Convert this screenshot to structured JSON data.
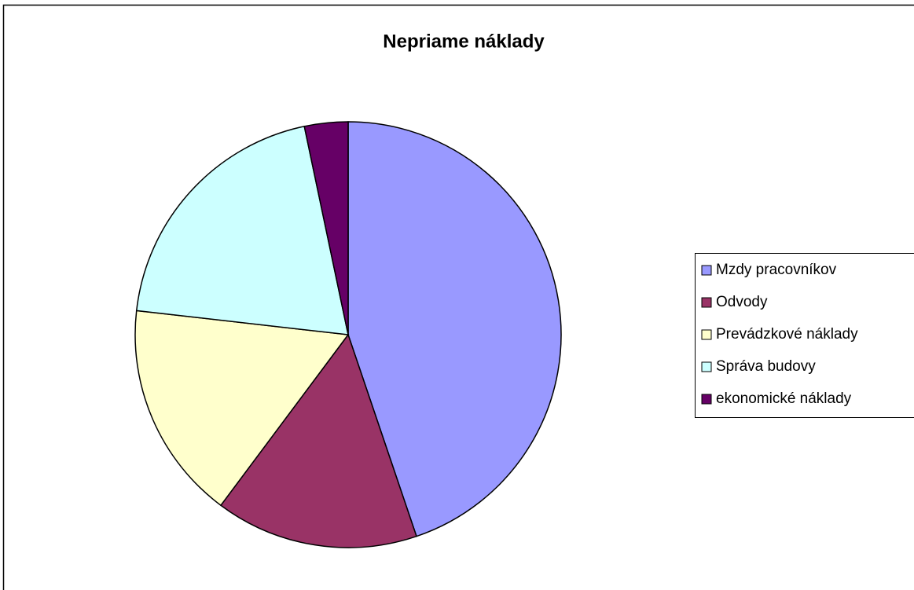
{
  "chart_data": {
    "type": "pie",
    "title": "Nepriame náklady",
    "categories": [
      "Mzdy pracovníkov",
      "Odvody",
      "Prevádzkové náklady",
      "Správa budovy",
      "ekonomické náklady"
    ],
    "values": [
      44.8,
      15.4,
      16.6,
      19.9,
      3.3
    ],
    "colors": [
      "#9999FF",
      "#993366",
      "#FFFFCC",
      "#CCFFFF",
      "#660066"
    ],
    "legend": "right"
  }
}
